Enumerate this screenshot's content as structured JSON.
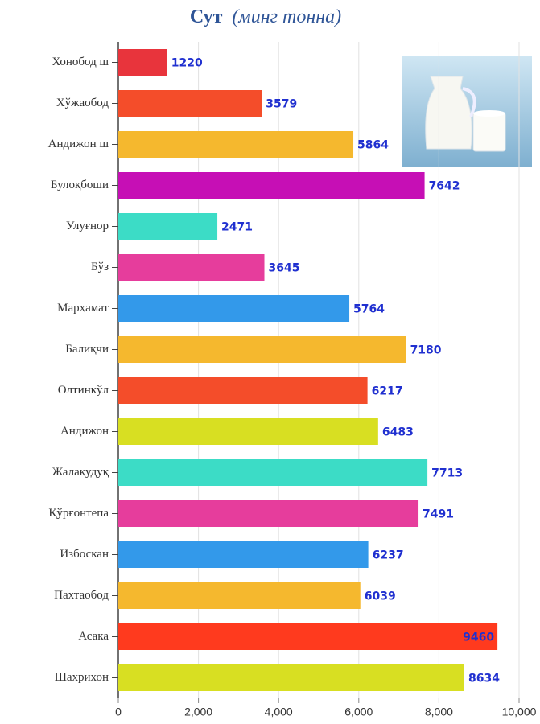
{
  "chart_data": {
    "type": "bar",
    "orientation": "horizontal",
    "title": "Сут",
    "title_unit": "(минг тонна)",
    "categories": [
      "Хонобод ш",
      "Хўжаобод",
      "Андижон ш",
      "Булоқбоши",
      "Улуғнор",
      "Бўз",
      "Марҳамат",
      "Балиқчи",
      "Олтинкўл",
      "Андижон",
      "Жалақудуқ",
      "Қўрғонтепа",
      "Избоскан",
      "Пахтаобод",
      "Асака",
      "Шахрихон"
    ],
    "values": [
      1220,
      3579,
      5864,
      7642,
      2471,
      3645,
      5764,
      7180,
      6217,
      6483,
      7713,
      7491,
      6237,
      6039,
      9460,
      8634
    ],
    "colors": [
      "#e8343c",
      "#f44d2a",
      "#f5b82e",
      "#c60fb5",
      "#3cdcc6",
      "#e63d9c",
      "#3399ea",
      "#f5b82e",
      "#f44d2a",
      "#d8df22",
      "#3cdcc6",
      "#e63d9c",
      "#3399ea",
      "#f5b82e",
      "#ff3a1e",
      "#d8df22"
    ],
    "xlim": [
      0,
      10000
    ],
    "xticks": [
      0,
      {
        "value": 2000,
        "label": "2,000"
      },
      {
        "value": 4000,
        "label": "4,000"
      },
      {
        "value": 6000,
        "label": "6,000"
      },
      {
        "value": 8000,
        "label": "8,000"
      },
      {
        "value": 10000,
        "label": "10,000"
      }
    ],
    "grid": true
  }
}
